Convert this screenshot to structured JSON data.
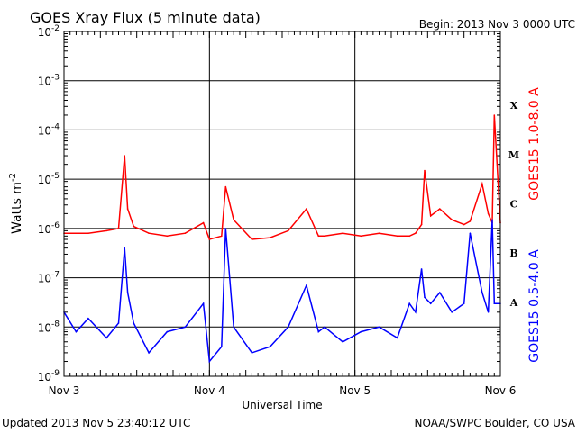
{
  "chart_data": {
    "type": "line",
    "title": "GOES Xray Flux (5 minute data)",
    "begin_label": "Begin:  2013 Nov 3 0000 UTC",
    "xlabel": "Universal Time",
    "ylabel": "Watts m",
    "ylabel_exp": "-2",
    "y_scale": "log",
    "ylim": [
      1e-09,
      0.01
    ],
    "xlim": [
      "2013-11-03T00:00",
      "2013-11-06T00:00"
    ],
    "x_ticks": [
      "Nov 3",
      "Nov 4",
      "Nov 5",
      "Nov 6"
    ],
    "y_ticks": [
      {
        "base": "10",
        "exp": "-2"
      },
      {
        "base": "10",
        "exp": "-3"
      },
      {
        "base": "10",
        "exp": "-4"
      },
      {
        "base": "10",
        "exp": "-5"
      },
      {
        "base": "10",
        "exp": "-6"
      },
      {
        "base": "10",
        "exp": "-7"
      },
      {
        "base": "10",
        "exp": "-8"
      },
      {
        "base": "10",
        "exp": "-9"
      }
    ],
    "flare_classes": [
      {
        "label": "X",
        "value": 0.0001
      },
      {
        "label": "M",
        "value": 1e-05
      },
      {
        "label": "C",
        "value": 1e-06
      },
      {
        "label": "B",
        "value": 1e-07
      },
      {
        "label": "A",
        "value": 1e-08
      }
    ],
    "grid": true,
    "series": [
      {
        "name": "GOES15 1.0-8.0 A",
        "color": "#ff0000",
        "x": [
          "2013-11-03T00:00",
          "2013-11-03T04:00",
          "2013-11-03T07:00",
          "2013-11-03T09:00",
          "2013-11-03T10:00",
          "2013-11-03T10:30",
          "2013-11-03T11:30",
          "2013-11-03T14:00",
          "2013-11-03T17:00",
          "2013-11-03T20:00",
          "2013-11-03T23:00",
          "2013-11-04T00:00",
          "2013-11-04T02:00",
          "2013-11-04T02:40",
          "2013-11-04T04:00",
          "2013-11-04T07:00",
          "2013-11-04T10:00",
          "2013-11-04T13:00",
          "2013-11-04T16:00",
          "2013-11-04T18:00",
          "2013-11-04T19:00",
          "2013-11-04T22:00",
          "2013-11-05T01:00",
          "2013-11-05T04:00",
          "2013-11-05T07:00",
          "2013-11-05T09:00",
          "2013-11-05T10:00",
          "2013-11-05T11:00",
          "2013-11-05T11:30",
          "2013-11-05T12:30",
          "2013-11-05T14:00",
          "2013-11-05T16:00",
          "2013-11-05T18:00",
          "2013-11-05T19:00",
          "2013-11-05T21:00",
          "2013-11-05T22:00",
          "2013-11-05T22:40",
          "2013-11-05T23:00",
          "2013-11-06T00:00"
        ],
        "values": [
          8e-07,
          8e-07,
          9e-07,
          1e-06,
          3e-05,
          2.5e-06,
          1.1e-06,
          8e-07,
          7e-07,
          8e-07,
          1.3e-06,
          6e-07,
          7e-07,
          7e-06,
          1.5e-06,
          6e-07,
          6.5e-07,
          9e-07,
          2.5e-06,
          7e-07,
          7e-07,
          8e-07,
          7e-07,
          8e-07,
          7e-07,
          7e-07,
          8e-07,
          1.2e-06,
          1.5e-05,
          1.8e-06,
          2.5e-06,
          1.5e-06,
          1.2e-06,
          1.4e-06,
          8e-06,
          2e-06,
          1.3e-06,
          0.0002,
          1.3e-06
        ]
      },
      {
        "name": "GOES15 0.5-4.0 A",
        "color": "#0000ff",
        "x": [
          "2013-11-03T00:00",
          "2013-11-03T02:00",
          "2013-11-03T04:00",
          "2013-11-03T07:00",
          "2013-11-03T09:00",
          "2013-11-03T10:00",
          "2013-11-03T10:30",
          "2013-11-03T11:30",
          "2013-11-03T14:00",
          "2013-11-03T17:00",
          "2013-11-03T20:00",
          "2013-11-03T23:00",
          "2013-11-04T00:00",
          "2013-11-04T02:00",
          "2013-11-04T02:40",
          "2013-11-04T04:00",
          "2013-11-04T07:00",
          "2013-11-04T10:00",
          "2013-11-04T13:00",
          "2013-11-04T16:00",
          "2013-11-04T18:00",
          "2013-11-04T19:00",
          "2013-11-04T22:00",
          "2013-11-05T01:00",
          "2013-11-05T04:00",
          "2013-11-05T07:00",
          "2013-11-05T09:00",
          "2013-11-05T10:00",
          "2013-11-05T11:00",
          "2013-11-05T11:30",
          "2013-11-05T12:30",
          "2013-11-05T14:00",
          "2013-11-05T16:00",
          "2013-11-05T18:00",
          "2013-11-05T19:00",
          "2013-11-05T21:00",
          "2013-11-05T22:00",
          "2013-11-05T22:40",
          "2013-11-05T23:00",
          "2013-11-06T00:00"
        ],
        "values": [
          2e-08,
          8e-09,
          1.5e-08,
          6e-09,
          1.2e-08,
          4e-07,
          5e-08,
          1.2e-08,
          3e-09,
          8e-09,
          1e-08,
          3e-08,
          2e-09,
          4e-09,
          1e-06,
          1e-08,
          3e-09,
          4e-09,
          1e-08,
          7e-08,
          8e-09,
          1e-08,
          5e-09,
          8e-09,
          1e-08,
          6e-09,
          3e-08,
          2e-08,
          1.5e-07,
          4e-08,
          3e-08,
          5e-08,
          2e-08,
          3e-08,
          8e-07,
          5e-08,
          2e-08,
          1.5e-06,
          3e-08,
          3e-08
        ]
      }
    ]
  },
  "footer": {
    "updated": "Updated 2013 Nov  5 23:40:12 UTC",
    "source": "NOAA/SWPC Boulder, CO USA"
  }
}
